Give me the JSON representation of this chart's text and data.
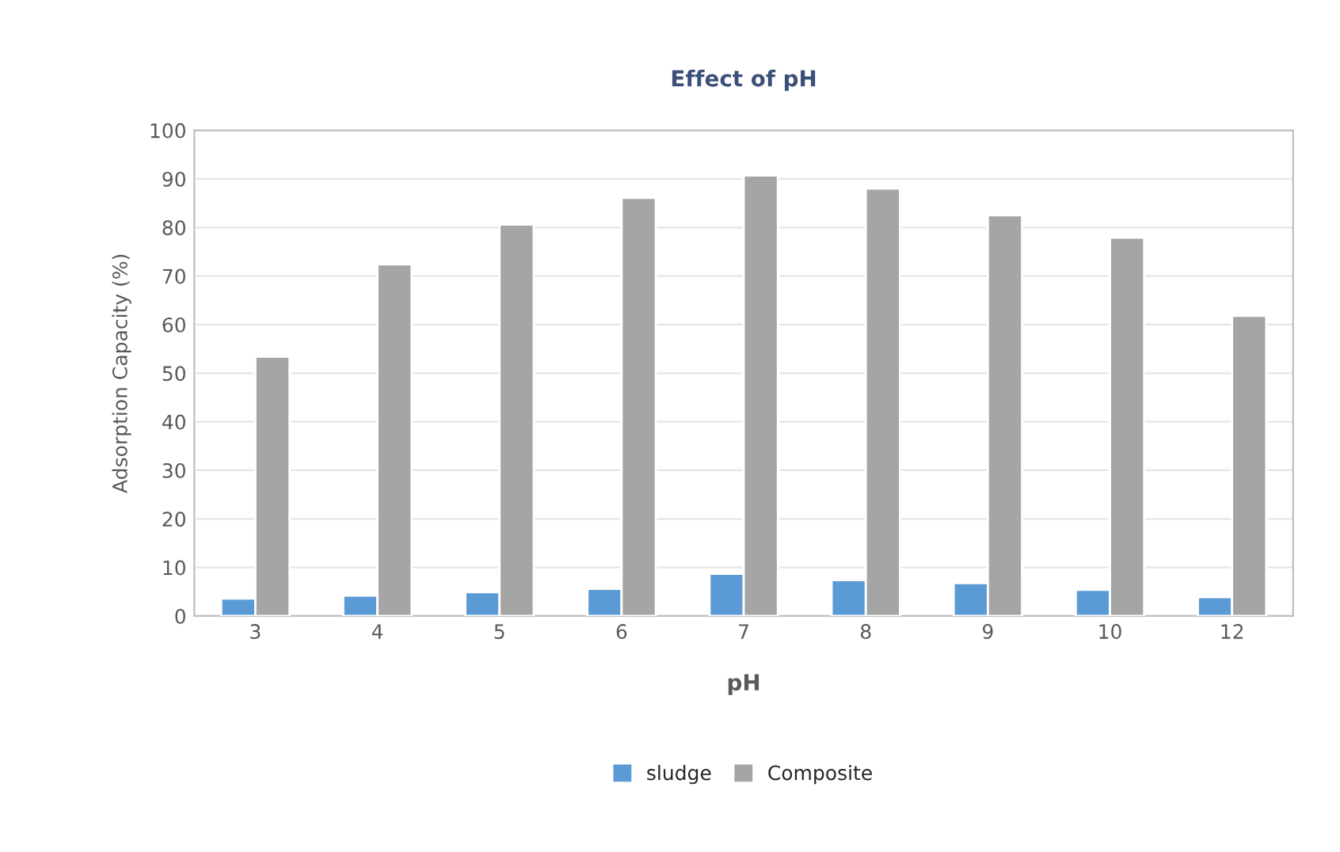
{
  "chart_data": {
    "type": "bar",
    "title": "Effect of pH",
    "xlabel": "pH",
    "ylabel": "Adsorption Capacity (%)",
    "categories": [
      "3",
      "4",
      "5",
      "6",
      "7",
      "8",
      "9",
      "10",
      "12"
    ],
    "series": [
      {
        "name": "sludge",
        "color": "#5b9bd5",
        "values": [
          3.6,
          4.2,
          4.9,
          5.6,
          8.7,
          7.4,
          6.8,
          5.4,
          3.9
        ]
      },
      {
        "name": "Composite",
        "color": "#a5a5a5",
        "values": [
          53.4,
          72.4,
          80.6,
          86.1,
          90.7,
          88.0,
          82.5,
          77.9,
          61.8
        ]
      }
    ],
    "ylim": [
      0,
      100
    ],
    "yticks": [
      0,
      10,
      20,
      30,
      40,
      50,
      60,
      70,
      80,
      90,
      100
    ],
    "grid": "y",
    "legend": "bottom"
  }
}
